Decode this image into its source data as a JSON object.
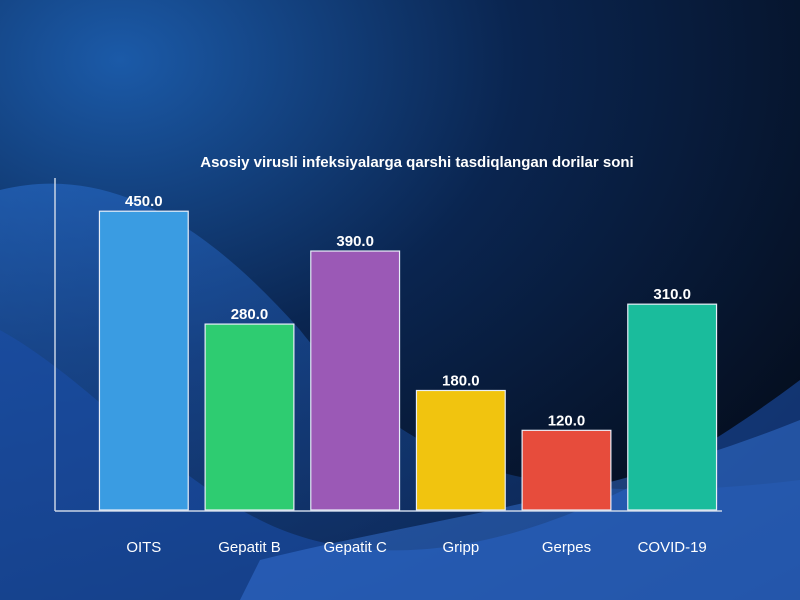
{
  "chart_data": {
    "type": "bar",
    "title": "Asosiy virusli infeksiyalarga qarshi tasdiqlangan dorilar soni",
    "categories": [
      "OITS",
      "Gepatit B",
      "Gepatit C",
      "Gripp",
      "Gerpes",
      "COVID-19"
    ],
    "values": [
      450,
      280,
      390,
      180,
      120,
      310
    ],
    "value_labels": [
      "450.0",
      "280.0",
      "390.0",
      "180.0",
      "120.0",
      "310.0"
    ],
    "colors": [
      "#3a9ce2",
      "#2ecc71",
      "#9b59b6",
      "#f1c40f",
      "#e74c3c",
      "#1abc9c"
    ],
    "ylim": [
      0,
      500
    ]
  }
}
